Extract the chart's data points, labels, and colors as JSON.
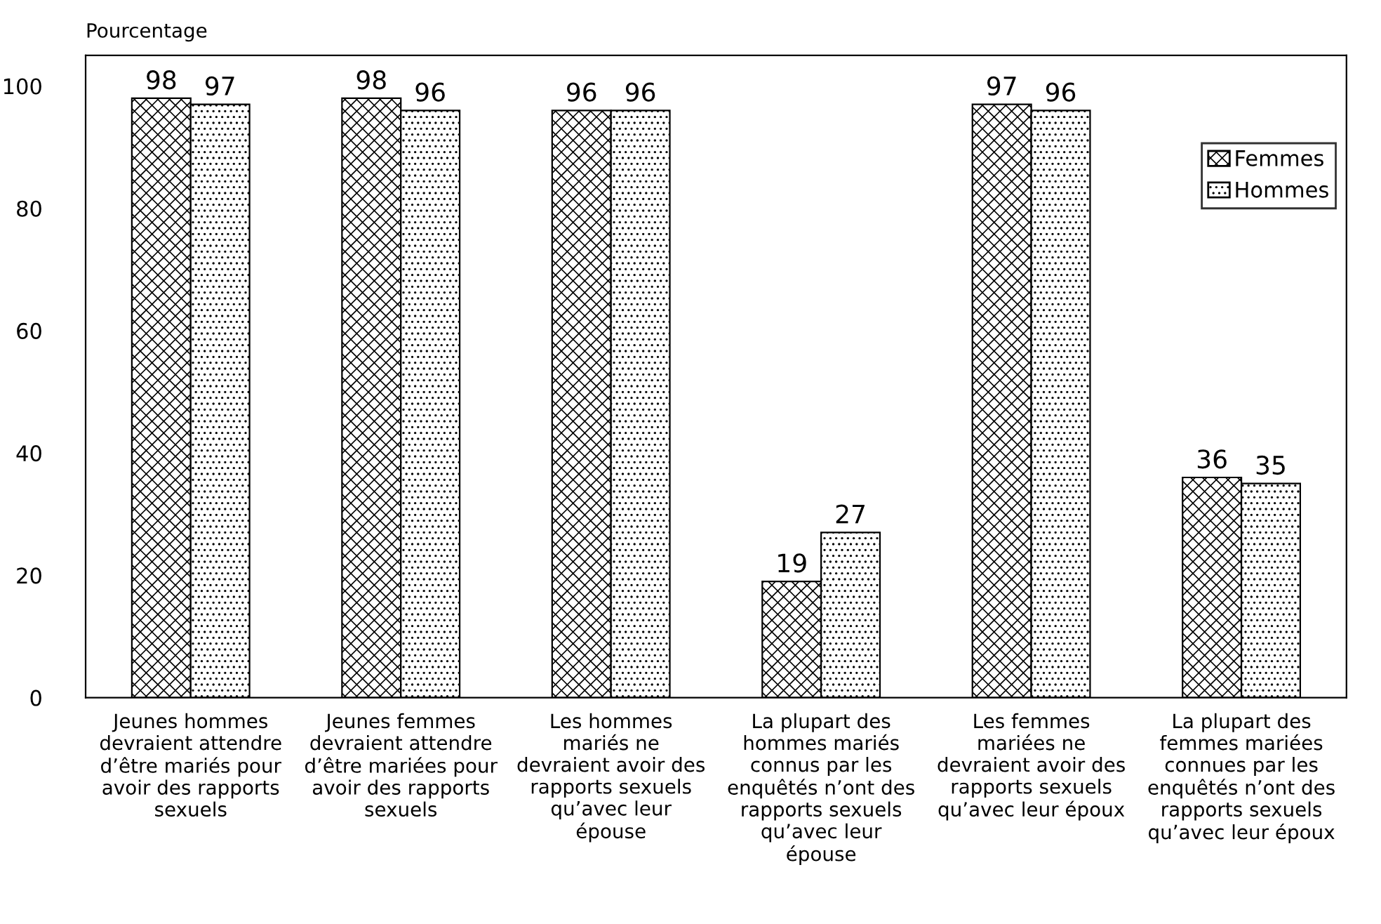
{
  "chart_data": {
    "type": "bar",
    "ylabel": "Pourcentage",
    "categories": [
      "Jeunes hommes\ndevraient attendre\nd’être mariés pour\navoir des rapports\nsexuels",
      "Jeunes femmes\ndevraient attendre\nd’être mariées pour\navoir des rapports\nsexuels",
      "Les hommes\nmariés ne\ndevraient avoir des\nrapports sexuels\nqu’avec leur\népouse",
      "La plupart des\nhommes mariés\nconnus par les\nenquêtés n’ont des\nrapports sexuels\nqu’avec leur\népouse",
      "Les femmes\nmariées ne\ndevraient avoir des\nrapports sexuels\nqu’avec leur époux",
      "La plupart des\nfemmes mariées\nconnues par les\nenquêtés n’ont des\nrapports sexuels\nqu’avec leur époux"
    ],
    "series": [
      {
        "name": "Femmes",
        "color": "#000000",
        "values": [
          98,
          98,
          96,
          19,
          97,
          36
        ]
      },
      {
        "name": "Hommes",
        "color": "#000000",
        "values": [
          97,
          96,
          96,
          27,
          96,
          35
        ]
      }
    ],
    "ylim": [
      0,
      105
    ],
    "yticks": [
      0,
      20,
      40,
      60,
      80,
      100
    ],
    "data_labels": true,
    "grid": false,
    "legend": "top right"
  }
}
